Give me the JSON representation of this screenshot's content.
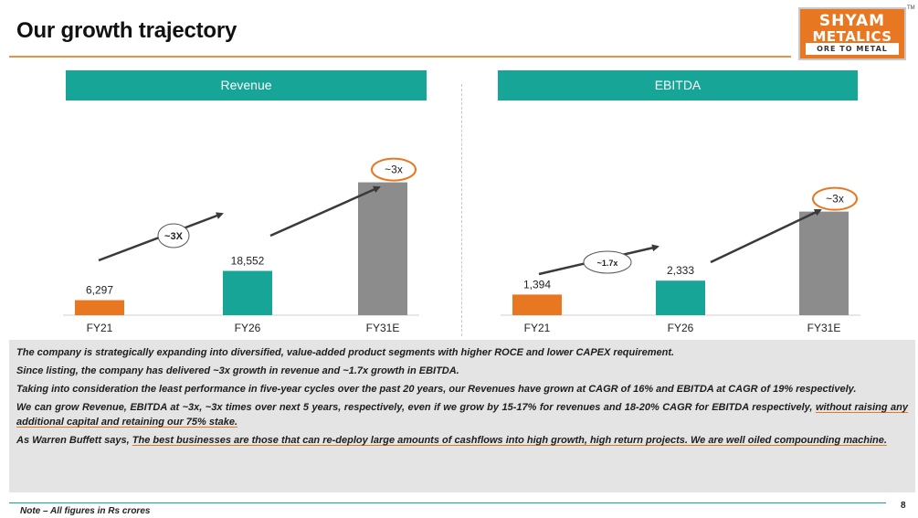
{
  "title": "Our growth trajectory",
  "logo": {
    "line1": "SHYAM",
    "line2": "METALICS",
    "tagline": "ORE TO METAL",
    "tm": "TM"
  },
  "colors": {
    "orange": "#E87722",
    "teal": "#16A596",
    "grey": "#8C8C8C"
  },
  "chart_data": [
    {
      "type": "bar",
      "title": "Revenue",
      "categories": [
        "FY21",
        "FY26",
        "FY31E"
      ],
      "values": [
        6297,
        18552,
        55656
      ],
      "data_labels": [
        "6,297",
        "18,552",
        "~3x"
      ],
      "bar_colors": [
        "#E87722",
        "#16A596",
        "#8C8C8C"
      ],
      "ylim": [
        0,
        62000
      ],
      "annotation": "~3X",
      "xlabel": "",
      "ylabel": ""
    },
    {
      "type": "bar",
      "title": "EBITDA",
      "categories": [
        "FY21",
        "FY26",
        "FY31E"
      ],
      "values": [
        1394,
        2333,
        6999
      ],
      "data_labels": [
        "1,394",
        "2,333",
        "~3x"
      ],
      "bar_colors": [
        "#E87722",
        "#16A596",
        "#8C8C8C"
      ],
      "ylim": [
        0,
        10000
      ],
      "annotation": "~1.7x",
      "xlabel": "",
      "ylabel": ""
    }
  ],
  "notes": {
    "n1": "The company is strategically expanding into diversified, value-added product segments with higher ROCE and lower CAPEX requirement.",
    "n2": "Since listing, the company has  delivered ~3x growth in revenue and ~1.7x growth in EBITDA.",
    "n3": "Taking into consideration the least performance in five-year cycles over the past 20 years, our Revenues have grown at CAGR of 16% and EBITDA at CAGR of 19% respectively.",
    "n4a": "We can grow Revenue, EBITDA at ~3x, ~3x times over next 5 years, respectively, even if we grow by 15-17% for revenues and 18-20% CAGR for EBITDA respectively, ",
    "n4b": "without raising any additional capital and retaining our 75% stake.",
    "n5a": "As Warren Buffett says, ",
    "n5b": "The best businesses are those that can re-deploy large amounts of cashflows into high growth, high return projects. We are well oiled compounding machine."
  },
  "footnote": "Note – All figures in Rs crores",
  "page_number": "8"
}
